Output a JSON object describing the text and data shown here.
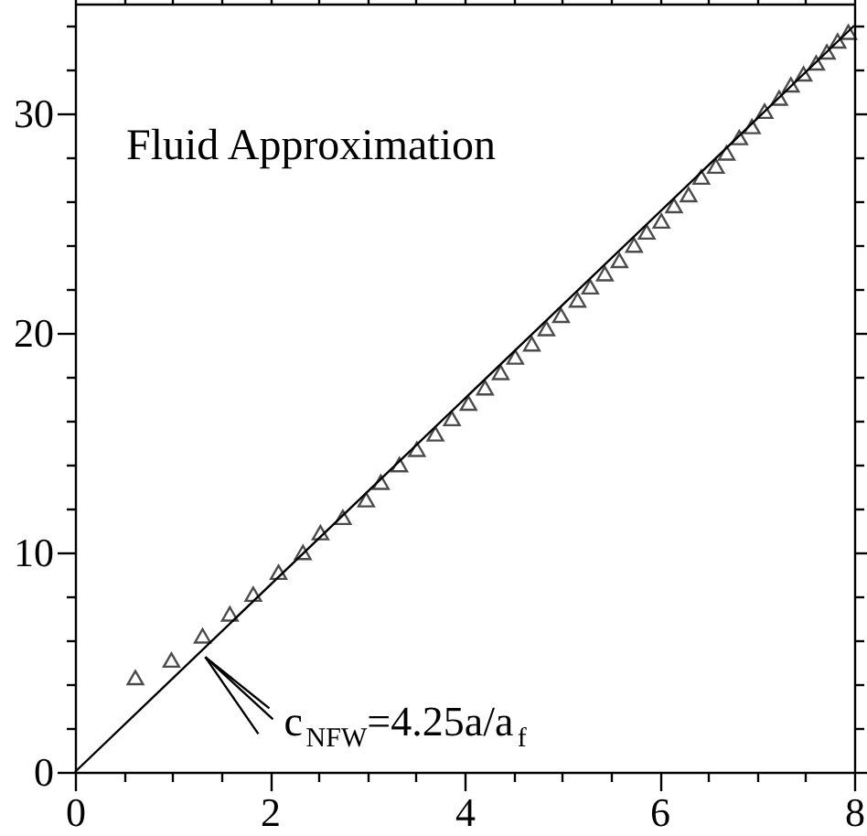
{
  "chart_data": {
    "type": "scatter",
    "xlim": [
      0,
      8
    ],
    "ylim": [
      0,
      35
    ],
    "xticks": [
      0,
      {
        "value": 0.5,
        "label": null
      },
      {
        "value": 1,
        "label": null
      },
      {
        "value": 1.5,
        "label": null
      },
      2,
      {
        "value": 2.5,
        "label": null
      },
      {
        "value": 3,
        "label": null
      },
      {
        "value": 3.5,
        "label": null
      },
      4,
      {
        "value": 4.5,
        "label": null
      },
      {
        "value": 5,
        "label": null
      },
      {
        "value": 5.5,
        "label": null
      },
      6,
      {
        "value": 6.5,
        "label": null
      },
      {
        "value": 7,
        "label": null
      },
      {
        "value": 7.5,
        "label": null
      },
      8
    ],
    "yticks": [
      0,
      {
        "value": 2,
        "label": null
      },
      {
        "value": 4,
        "label": null
      },
      {
        "value": 6,
        "label": null
      },
      {
        "value": 8,
        "label": null
      },
      10,
      {
        "value": 12,
        "label": null
      },
      {
        "value": 14,
        "label": null
      },
      {
        "value": 16,
        "label": null
      },
      {
        "value": 18,
        "label": null
      },
      20,
      {
        "value": 22,
        "label": null
      },
      {
        "value": 24,
        "label": null
      },
      {
        "value": 26,
        "label": null
      },
      {
        "value": 28,
        "label": null
      },
      30,
      {
        "value": 32,
        "label": null
      },
      {
        "value": 34,
        "label": null
      }
    ],
    "grid": false,
    "annotations": [
      "Fluid Approximation",
      {
        "text": "c$_{NFW}$=4.25a/a$_{f}$",
        "x": 1.3,
        "y": 5.4
      }
    ],
    "series": [
      {
        "type": "line",
        "color": "#000000",
        "line_style": "solid",
        "marker": "none",
        "x": [
          0,
          8
        ],
        "values": [
          0,
          34
        ]
      },
      {
        "color": "#000000",
        "marker": "triangle",
        "x": [
          0.62,
          0.99,
          1.31,
          1.59,
          1.83,
          2.09,
          2.34,
          2.52,
          2.75,
          2.99,
          3.14,
          3.33,
          3.51,
          3.7,
          3.87,
          4.04,
          4.21,
          4.37,
          4.52,
          4.69,
          4.84,
          4.99,
          5.16,
          5.29,
          5.44,
          5.59,
          5.74,
          5.87,
          6.02,
          6.15,
          6.3,
          6.43,
          6.58,
          6.69,
          6.82,
          6.95,
          7.08,
          7.23,
          7.35,
          7.48,
          7.61,
          7.72,
          7.83,
          7.94
        ],
        "values": [
          4.3,
          5.1,
          6.2,
          7.2,
          8.1,
          9.1,
          10.0,
          10.9,
          11.6,
          12.4,
          13.2,
          14.0,
          14.7,
          15.4,
          16.1,
          16.8,
          17.5,
          18.2,
          18.9,
          19.5,
          20.2,
          20.8,
          21.5,
          22.1,
          22.7,
          23.3,
          24.0,
          24.6,
          25.1,
          25.8,
          26.3,
          27.1,
          27.6,
          28.2,
          28.9,
          29.4,
          30.1,
          30.7,
          31.3,
          31.8,
          32.3,
          32.8,
          33.3,
          33.7
        ]
      }
    ]
  }
}
